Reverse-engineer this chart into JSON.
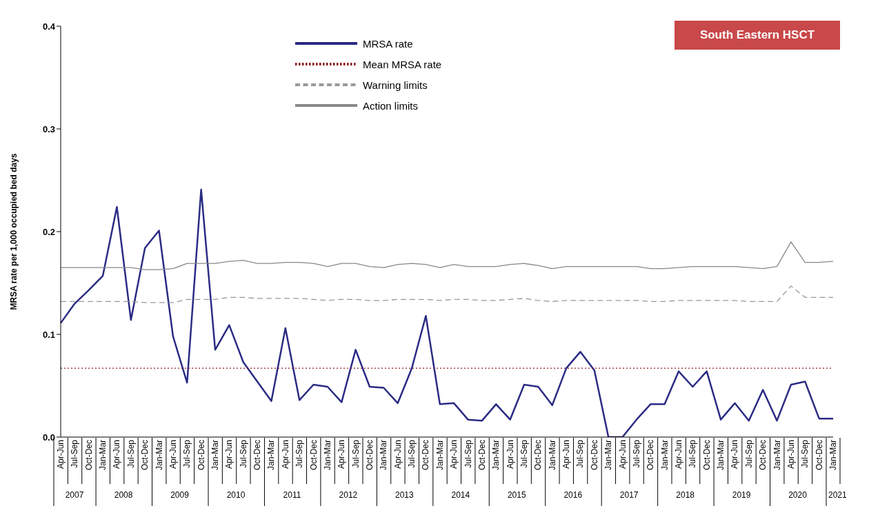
{
  "chart_data": {
    "type": "line",
    "title": "South Eastern HSCT",
    "ylabel": "MRSA rate per 1,000 occupied bed days",
    "categories": [
      "Apr-Jun",
      "Jul-Sep",
      "Oct-Dec",
      "Jan-Mar",
      "Apr-Jun",
      "Jul-Sep",
      "Oct-Dec",
      "Jan-Mar",
      "Apr-Jun",
      "Jul-Sep",
      "Oct-Dec",
      "Jan-Mar",
      "Apr-Jun",
      "Jul-Sep",
      "Oct-Dec",
      "Jan-Mar",
      "Apr-Jun",
      "Jul-Sep",
      "Oct-Dec",
      "Jan-Mar",
      "Apr-Jun",
      "Jul-Sep",
      "Oct-Dec",
      "Jan-Mar",
      "Apr-Jun",
      "Jul-Sep",
      "Oct-Dec",
      "Jan-Mar",
      "Apr-Jun",
      "Jul-Sep",
      "Oct-Dec",
      "Jan-Mar",
      "Apr-Jun",
      "Jul-Sep",
      "Oct-Dec",
      "Jan-Mar",
      "Apr-Jun",
      "Jul-Sep",
      "Oct-Dec",
      "Jan-Mar",
      "Apr-Jun",
      "Jul-Sep",
      "Oct-Dec",
      "Jan-Mar",
      "Apr-Jun",
      "Jul-Sep",
      "Oct-Dec",
      "Jan-Mar",
      "Apr-Jun",
      "Jul-Sep",
      "Oct-Dec",
      "Jan-Mar",
      "Apr-Jun",
      "Jul-Sep",
      "Oct-Dec",
      "Jan-Mar"
    ],
    "series": [
      {
        "name": "MRSA rate",
        "color": "#2b2b84",
        "line_style": "solid",
        "values": [
          0.111,
          0.13,
          0.143,
          0.157,
          0.224,
          0.114,
          0.184,
          0.201,
          0.098,
          0.053,
          0.241,
          0.085,
          0.109,
          0.073,
          0.054,
          0.035,
          0.106,
          0.036,
          0.051,
          0.049,
          0.034,
          0.085,
          0.049,
          0.048,
          0.033,
          0.067,
          0.118,
          0.032,
          0.033,
          0.017,
          0.016,
          0.032,
          0.017,
          0.051,
          0.049,
          0.031,
          0.067,
          0.083,
          0.065,
          0.0,
          0.0,
          0.017,
          0.032,
          0.032,
          0.064,
          0.049,
          0.064,
          0.017,
          0.033,
          0.016,
          0.046,
          0.016,
          0.051,
          0.054,
          0.018,
          0.018
        ]
      },
      {
        "name": "Mean MRSA rate",
        "color": "#8b1a1a",
        "line_style": "dotted",
        "values": [
          0.067,
          0.067,
          0.067,
          0.067,
          0.067,
          0.067,
          0.067,
          0.067,
          0.067,
          0.067,
          0.067,
          0.067,
          0.067,
          0.067,
          0.067,
          0.067,
          0.067,
          0.067,
          0.067,
          0.067,
          0.067,
          0.067,
          0.067,
          0.067,
          0.067,
          0.067,
          0.067,
          0.067,
          0.067,
          0.067,
          0.067,
          0.067,
          0.067,
          0.067,
          0.067,
          0.067,
          0.067,
          0.067,
          0.067,
          0.067,
          0.067,
          0.067,
          0.067,
          0.067,
          0.067,
          0.067,
          0.067,
          0.067,
          0.067,
          0.067,
          0.067,
          0.067,
          0.067,
          0.067,
          0.067,
          0.067
        ]
      },
      {
        "name": "Warning limits",
        "color": "#999999",
        "line_style": "dashed",
        "values": [
          0.132,
          0.132,
          0.132,
          0.132,
          0.132,
          0.132,
          0.131,
          0.131,
          0.131,
          0.134,
          0.134,
          0.134,
          0.136,
          0.136,
          0.135,
          0.135,
          0.135,
          0.135,
          0.134,
          0.133,
          0.134,
          0.134,
          0.133,
          0.133,
          0.134,
          0.134,
          0.134,
          0.133,
          0.134,
          0.134,
          0.133,
          0.133,
          0.134,
          0.135,
          0.133,
          0.132,
          0.133,
          0.133,
          0.133,
          0.133,
          0.133,
          0.133,
          0.132,
          0.132,
          0.133,
          0.133,
          0.133,
          0.133,
          0.133,
          0.132,
          0.132,
          0.132,
          0.147,
          0.136,
          0.136,
          0.136
        ]
      },
      {
        "name": "Action limits",
        "color": "#888888",
        "line_style": "solid",
        "values": [
          0.165,
          0.165,
          0.165,
          0.165,
          0.165,
          0.165,
          0.163,
          0.163,
          0.164,
          0.169,
          0.169,
          0.169,
          0.171,
          0.172,
          0.169,
          0.169,
          0.17,
          0.17,
          0.169,
          0.166,
          0.169,
          0.169,
          0.166,
          0.165,
          0.168,
          0.169,
          0.168,
          0.165,
          0.168,
          0.166,
          0.166,
          0.166,
          0.168,
          0.169,
          0.167,
          0.164,
          0.166,
          0.166,
          0.166,
          0.166,
          0.166,
          0.166,
          0.164,
          0.164,
          0.165,
          0.166,
          0.166,
          0.166,
          0.166,
          0.165,
          0.164,
          0.166,
          0.19,
          0.17,
          0.17,
          0.171
        ]
      }
    ],
    "annotations": [
      "2007",
      "2008",
      "2009",
      "2010",
      "2011",
      "2012",
      "2013",
      "2014",
      "2015",
      "2016",
      "2017",
      "2018",
      "2019",
      "2020",
      "2021"
    ],
    "ylim": [
      0,
      0.4
    ],
    "yticks": [
      {
        "value": 0,
        "label": "0.0"
      },
      {
        "value": 0.1,
        "label": "0.1"
      },
      {
        "value": 0.2,
        "label": "0.2"
      },
      {
        "value": 0.3,
        "label": "0.3"
      },
      {
        "value": 0.4,
        "label": "0.4"
      }
    ],
    "grid": false,
    "legend": "top",
    "marker": "none"
  }
}
